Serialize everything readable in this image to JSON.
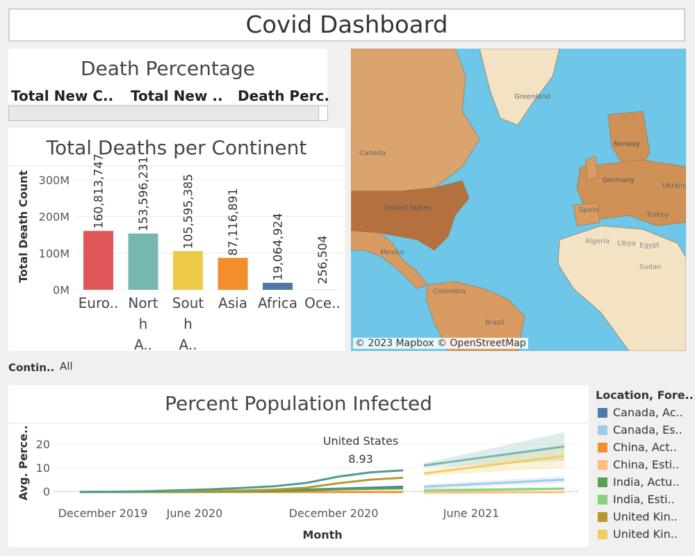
{
  "dashboard": {
    "title": "Covid Dashboard"
  },
  "death_pct": {
    "title": "Death Percentage",
    "columns": [
      "Total New C..",
      "Total New ..",
      "Death Perc."
    ]
  },
  "map": {
    "attribution": "© 2023 Mapbox © OpenStreetMap",
    "labels": [
      "Greenland",
      "Canada",
      "United States",
      "Mexico",
      "Colombia",
      "Brazil",
      "Algeria",
      "Libya",
      "Egypt",
      "Sudan",
      "Turkey",
      "Spain",
      "Germany",
      "Ukraine",
      "Norway"
    ]
  },
  "filter": {
    "label": "Contin..",
    "value": "All"
  },
  "legend": {
    "title": "Location, Fore..",
    "items": [
      {
        "label": "Canada, Ac..",
        "color": "#4e79a7"
      },
      {
        "label": "Canada, Es..",
        "color": "#a0cbe8"
      },
      {
        "label": "China, Act..",
        "color": "#f28e2b"
      },
      {
        "label": "China, Esti..",
        "color": "#ffbe7d"
      },
      {
        "label": "India, Actu..",
        "color": "#59a14f"
      },
      {
        "label": "India, Esti..",
        "color": "#8cd17d"
      },
      {
        "label": "United Kin..",
        "color": "#b6992d"
      },
      {
        "label": "United Kin..",
        "color": "#f1ce63"
      }
    ]
  },
  "chart_data": [
    {
      "type": "bar",
      "title": "Total Deaths per Continent",
      "ylabel": "Total Death Count",
      "categories": [
        "Euro..",
        "Nort h A..",
        "Sout h A..",
        "Asia",
        "Africa",
        "Oce.."
      ],
      "values": [
        160813747,
        153596231,
        105595385,
        87116891,
        19064924,
        256504
      ],
      "data_labels": [
        "160,813,747",
        "153,596,231",
        "105,595,385",
        "87,116,891",
        "19,064,924",
        "256,504"
      ],
      "colors": [
        "#e15759",
        "#76b7b2",
        "#edc948",
        "#f28e2b",
        "#4e79a7",
        "#4e79a7"
      ],
      "ylim": [
        0,
        330000000
      ],
      "yticks": [
        0,
        100000000,
        200000000,
        300000000
      ],
      "ytick_labels": [
        "0M",
        "100M",
        "200M",
        "300M"
      ]
    },
    {
      "type": "line",
      "title": "Percent Population Infected",
      "xlabel": "Month",
      "ylabel": "Avg. Perce..",
      "ylim": [
        -2,
        25
      ],
      "yticks": [
        0,
        10,
        20
      ],
      "xtick_labels": [
        "December 2019",
        "June 2020",
        "December 2020",
        "June 2021"
      ],
      "annotation": {
        "text": "United States",
        "value": "8.93"
      },
      "series": [
        {
          "color": "#4e79a7",
          "values": [
            -0.2,
            -0.2,
            -0.1,
            0,
            0.1,
            0.2,
            0.4,
            0.8,
            1.2,
            1.6,
            2.0
          ]
        },
        {
          "color": "#f28e2b",
          "values": [
            -0.2,
            -0.2,
            -0.2,
            -0.2,
            -0.2,
            -0.2,
            -0.2,
            -0.2,
            -0.2,
            -0.2,
            -0.2
          ]
        },
        {
          "color": "#59a14f",
          "values": [
            -0.2,
            -0.2,
            -0.2,
            -0.2,
            -0.1,
            0,
            0.2,
            0.5,
            0.9,
            1.1,
            1.3
          ]
        },
        {
          "color": "#b6992d",
          "values": [
            -0.2,
            -0.2,
            -0.1,
            0,
            0.2,
            0.4,
            0.8,
            1.6,
            3.5,
            5.0,
            5.8
          ]
        },
        {
          "color": "#4e9a96",
          "values": [
            -0.2,
            -0.1,
            0.1,
            0.5,
            0.9,
            1.5,
            2.2,
            3.6,
            6.3,
            8.1,
            8.93
          ]
        }
      ],
      "forecasts": [
        {
          "color": "#76b7b2",
          "values": [
            11,
            19
          ]
        },
        {
          "color": "#f1ce63",
          "values": [
            7.6,
            15
          ]
        },
        {
          "color": "#a0cbe8",
          "values": [
            2,
            5
          ]
        },
        {
          "color": "#8cd17d",
          "values": [
            0.4,
            1.2
          ]
        },
        {
          "color": "#ffbe7d",
          "values": [
            -0.3,
            -0.3
          ]
        }
      ]
    }
  ]
}
